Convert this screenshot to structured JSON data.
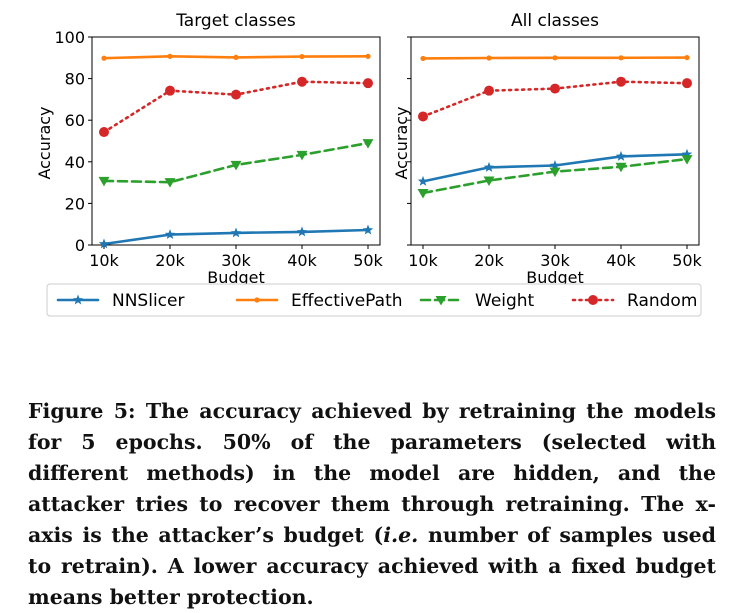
{
  "chart_data": [
    {
      "type": "line",
      "title": "Target classes",
      "xlabel": "Budget",
      "ylabel": "Accuracy",
      "categories": [
        "10k",
        "20k",
        "30k",
        "40k",
        "50k"
      ],
      "ylim": [
        0,
        100
      ],
      "yticks": [
        "0",
        "20",
        "40",
        "60",
        "80",
        "100"
      ],
      "series": [
        {
          "name": "NNSlicer",
          "values": [
            0.5,
            5,
            5.8,
            6.3,
            7.2
          ],
          "color": "#1f77b4",
          "marker": "star",
          "dash": "solid"
        },
        {
          "name": "EffectivePath",
          "values": [
            89.8,
            90.7,
            90.2,
            90.6,
            90.7
          ],
          "color": "#ff7f0e",
          "marker": "dot",
          "dash": "solid"
        },
        {
          "name": "Weight",
          "values": [
            30.8,
            30.2,
            38.5,
            43.3,
            49
          ],
          "color": "#2ca02c",
          "marker": "triangle-down",
          "dash": "dashed"
        },
        {
          "name": "Random",
          "values": [
            54.3,
            74.2,
            72.3,
            78.5,
            77.8
          ],
          "color": "#d62728",
          "marker": "circle",
          "dash": "dotted"
        }
      ]
    },
    {
      "type": "line",
      "title": "All classes",
      "xlabel": "Budget",
      "ylabel": "Accuracy",
      "categories": [
        "10k",
        "20k",
        "30k",
        "40k",
        "50k"
      ],
      "ylim": [
        0,
        100
      ],
      "series": [
        {
          "name": "NNSlicer",
          "values": [
            30.6,
            37.3,
            38.2,
            42.6,
            43.6
          ],
          "color": "#1f77b4",
          "marker": "star",
          "dash": "solid"
        },
        {
          "name": "EffectivePath",
          "values": [
            89.7,
            89.9,
            90,
            90,
            90.1
          ],
          "color": "#ff7f0e",
          "marker": "dot",
          "dash": "solid"
        },
        {
          "name": "Weight",
          "values": [
            25,
            31,
            35.3,
            37.6,
            41.3
          ],
          "color": "#2ca02c",
          "marker": "triangle-down",
          "dash": "dashed"
        },
        {
          "name": "Random",
          "values": [
            61.8,
            74.2,
            75.2,
            78.5,
            77.8
          ],
          "color": "#d62728",
          "marker": "circle",
          "dash": "dotted"
        }
      ]
    }
  ],
  "legend": {
    "placement": "bottom",
    "items": [
      "NNSlicer",
      "EffectivePath",
      "Weight",
      "Random"
    ]
  },
  "caption": {
    "part1": "Figure 5: The accuracy achieved by retraining the models for 5 epochs. 50% of the parameters (selected with different methods) in the model are hidden, and the attacker tries to recover them through retraining. The x-axis is the attacker’s budget (",
    "part2": "i.e.",
    "part3": " number of samples used to retrain). A lower accuracy achieved with a fixed budget means better protection."
  }
}
